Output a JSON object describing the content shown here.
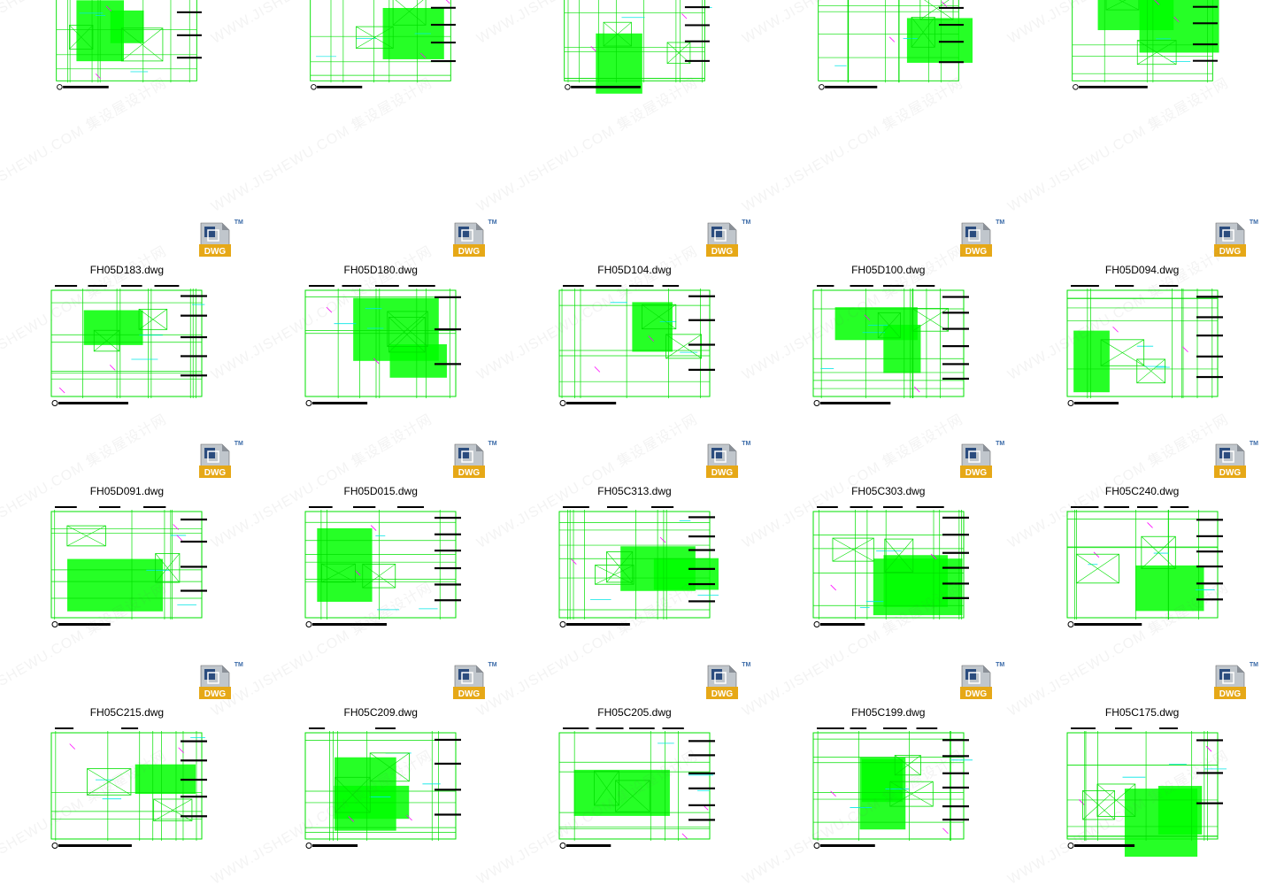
{
  "watermark_text": "WWW.JISHEWU.COM  集设屋设计网",
  "dwg_badge": {
    "label": "DWG",
    "tm": "TM",
    "page_fill": "#c0c6cc",
    "fold_fill": "#8a9098",
    "square_fill": "#2b4c7e",
    "band_fill": "#e6a817",
    "text_color": "#ffffff"
  },
  "cad_preview_colors": {
    "line_green": "#00e000",
    "line_cyan": "#00e6e6",
    "line_magenta": "#ff00ff",
    "line_black": "#000000",
    "fill_green": "#00ff00",
    "background": "#ffffff"
  },
  "rows": [
    {
      "partial_top": true,
      "files": [
        {
          "name": "",
          "variant": 0
        },
        {
          "name": "",
          "variant": 1
        },
        {
          "name": "",
          "variant": 2
        },
        {
          "name": "",
          "variant": 3
        },
        {
          "name": "",
          "variant": 4
        }
      ]
    },
    {
      "partial_top": false,
      "files": [
        {
          "name": "FH05D183.dwg",
          "variant": 5
        },
        {
          "name": "FH05D180.dwg",
          "variant": 6
        },
        {
          "name": "FH05D104.dwg",
          "variant": 7
        },
        {
          "name": "FH05D100.dwg",
          "variant": 8
        },
        {
          "name": "FH05D094.dwg",
          "variant": 9
        }
      ]
    },
    {
      "partial_top": false,
      "files": [
        {
          "name": "FH05D091.dwg",
          "variant": 10
        },
        {
          "name": "FH05D015.dwg",
          "variant": 11
        },
        {
          "name": "FH05C313.dwg",
          "variant": 12
        },
        {
          "name": "FH05C303.dwg",
          "variant": 13
        },
        {
          "name": "FH05C240.dwg",
          "variant": 14
        }
      ]
    },
    {
      "partial_top": false,
      "files": [
        {
          "name": "FH05C215.dwg",
          "variant": 15
        },
        {
          "name": "FH05C209.dwg",
          "variant": 16
        },
        {
          "name": "FH05C205.dwg",
          "variant": 17
        },
        {
          "name": "FH05C199.dwg",
          "variant": 18
        },
        {
          "name": "FH05C175.dwg",
          "variant": 19
        }
      ]
    }
  ]
}
